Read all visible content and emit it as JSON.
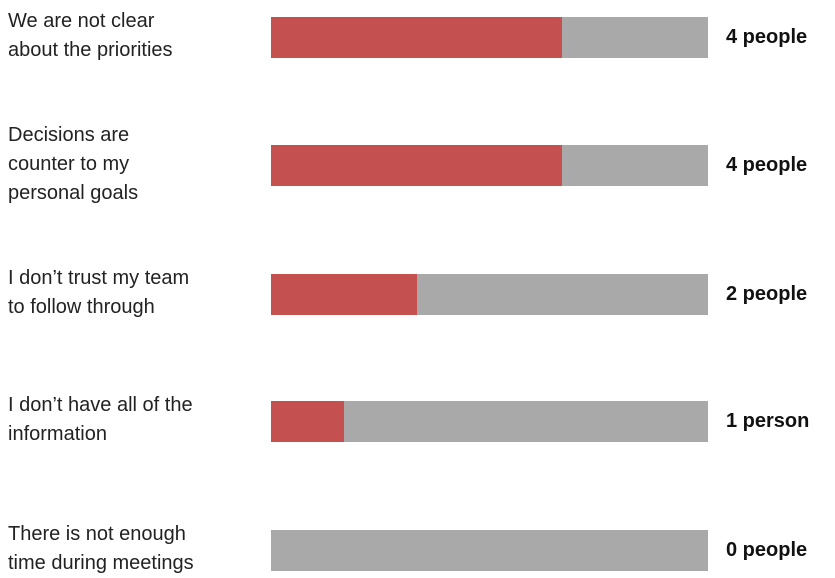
{
  "chart_data": {
    "type": "bar",
    "orientation": "horizontal",
    "categories": [
      [
        "We are not clear",
        "about the priorities"
      ],
      [
        "Decisions are",
        "counter to my",
        "personal goals"
      ],
      [
        "I don’t trust my team",
        "to follow through"
      ],
      [
        "I don’t have all of the",
        "information"
      ],
      [
        "There is not enough",
        "time during meetings"
      ]
    ],
    "values": [
      4,
      4,
      2,
      1,
      0
    ],
    "value_labels": [
      "4 people",
      "4 people",
      "2 people",
      "1 person",
      "0 people"
    ],
    "xlim": [
      0,
      6
    ],
    "grid": false,
    "colors": {
      "fill": "#c45050",
      "track": "#a9a9a9"
    }
  }
}
